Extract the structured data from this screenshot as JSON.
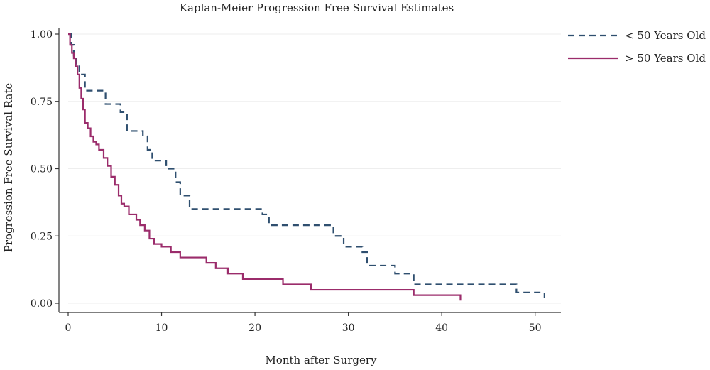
{
  "chart_data": {
    "type": "line",
    "title": "Kaplan-Meier Progression Free Survival Estimates",
    "xlabel": "Month after Surgery",
    "ylabel": "Progression Free Survival Rate",
    "xlim": [
      0,
      52
    ],
    "ylim": [
      0,
      1
    ],
    "x_ticks": [
      0,
      10,
      20,
      30,
      40,
      50
    ],
    "x_tick_labels": [
      "0",
      "10",
      "20",
      "30",
      "40",
      "50"
    ],
    "y_ticks": [
      0,
      0.25,
      0.5,
      0.75,
      1
    ],
    "y_tick_labels": [
      "0.00",
      "0.25",
      "0.50",
      "0.75",
      "1.00"
    ],
    "grid": true,
    "legend_position": "top-right",
    "step": true,
    "series": [
      {
        "name": "< 50 Years Old",
        "color": "#2f4f6f",
        "line_style": "dashed",
        "x": [
          0,
          0.3,
          0.6,
          0.9,
          1.2,
          1.8,
          4,
          5.6,
          6.3,
          8,
          8.5,
          9,
          10.5,
          11.5,
          12,
          13,
          20.8,
          21.5,
          28.4,
          29.5,
          31.5,
          32,
          35,
          37,
          48,
          51
        ],
        "y": [
          1,
          0.96,
          0.92,
          0.89,
          0.85,
          0.79,
          0.74,
          0.71,
          0.64,
          0.62,
          0.57,
          0.53,
          0.5,
          0.45,
          0.4,
          0.35,
          0.33,
          0.29,
          0.25,
          0.21,
          0.19,
          0.14,
          0.11,
          0.07,
          0.04,
          0.02
        ]
      },
      {
        "name": "> 50 Years Old",
        "color": "#9b2c6b",
        "line_style": "solid",
        "x": [
          0,
          0.2,
          0.4,
          0.6,
          0.8,
          1,
          1.2,
          1.4,
          1.6,
          1.8,
          2.1,
          2.4,
          2.7,
          3,
          3.3,
          3.8,
          4.2,
          4.6,
          5,
          5.4,
          5.7,
          6,
          6.5,
          7.3,
          7.7,
          8.2,
          8.7,
          9.2,
          10,
          11,
          12,
          14.8,
          15.8,
          17.1,
          18.7,
          23,
          26,
          37,
          42
        ],
        "y": [
          1,
          0.96,
          0.93,
          0.91,
          0.88,
          0.85,
          0.8,
          0.76,
          0.72,
          0.67,
          0.65,
          0.62,
          0.6,
          0.59,
          0.57,
          0.54,
          0.51,
          0.47,
          0.44,
          0.4,
          0.37,
          0.36,
          0.33,
          0.31,
          0.29,
          0.27,
          0.24,
          0.22,
          0.21,
          0.19,
          0.17,
          0.15,
          0.13,
          0.11,
          0.09,
          0.07,
          0.05,
          0.03,
          0.01
        ]
      }
    ]
  }
}
